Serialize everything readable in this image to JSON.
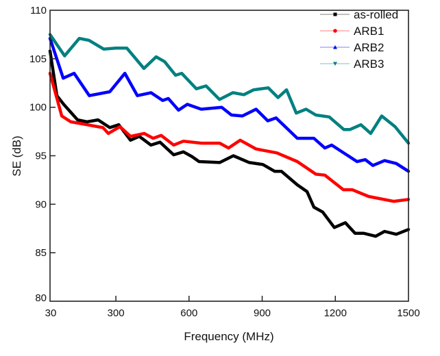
{
  "chart_data": {
    "type": "line",
    "title": "",
    "xlabel": "Frequency (MHz)",
    "ylabel": "SE (dB)",
    "xlim": [
      30,
      1500
    ],
    "ylim": [
      80,
      110
    ],
    "xticks": [
      "30",
      "300",
      "600",
      "900",
      "1200",
      "1500"
    ],
    "yticks": [
      "80",
      "85",
      "90",
      "95",
      "100",
      "105",
      "110"
    ],
    "grid": false,
    "legend_position": "top-right",
    "series": [
      {
        "name": "as-rolled",
        "color": "#000000",
        "marker": "square",
        "points": [
          [
            30,
            105.8
          ],
          [
            58,
            101.2
          ],
          [
            86,
            100.3
          ],
          [
            143,
            98.7
          ],
          [
            182,
            98.5
          ],
          [
            227,
            98.7
          ],
          [
            275,
            97.9
          ],
          [
            312,
            98.2
          ],
          [
            360,
            96.6
          ],
          [
            396,
            97.0
          ],
          [
            444,
            96.1
          ],
          [
            481,
            96.4
          ],
          [
            537,
            95.1
          ],
          [
            577,
            95.4
          ],
          [
            613,
            94.9
          ],
          [
            641,
            94.4
          ],
          [
            726,
            94.3
          ],
          [
            782,
            95.0
          ],
          [
            847,
            94.3
          ],
          [
            903,
            94.1
          ],
          [
            951,
            93.4
          ],
          [
            979,
            93.4
          ],
          [
            1044,
            92.0
          ],
          [
            1084,
            91.3
          ],
          [
            1112,
            89.7
          ],
          [
            1148,
            89.2
          ],
          [
            1196,
            87.6
          ],
          [
            1241,
            88.1
          ],
          [
            1281,
            87.0
          ],
          [
            1317,
            87.0
          ],
          [
            1365,
            86.7
          ],
          [
            1402,
            87.2
          ],
          [
            1450,
            86.9
          ],
          [
            1500,
            87.4
          ]
        ]
      },
      {
        "name": "ARB1",
        "color": "#ff0000",
        "marker": "circle",
        "points": [
          [
            30,
            103.5
          ],
          [
            78,
            99.1
          ],
          [
            115,
            98.5
          ],
          [
            182,
            98.2
          ],
          [
            247,
            97.9
          ],
          [
            269,
            97.3
          ],
          [
            317,
            98.0
          ],
          [
            360,
            97.0
          ],
          [
            416,
            97.3
          ],
          [
            453,
            96.8
          ],
          [
            486,
            97.1
          ],
          [
            537,
            96.1
          ],
          [
            577,
            96.5
          ],
          [
            650,
            96.3
          ],
          [
            726,
            96.3
          ],
          [
            762,
            95.8
          ],
          [
            810,
            96.6
          ],
          [
            875,
            95.7
          ],
          [
            960,
            95.3
          ],
          [
            1044,
            94.4
          ],
          [
            1120,
            93.1
          ],
          [
            1157,
            93.0
          ],
          [
            1233,
            91.5
          ],
          [
            1269,
            91.5
          ],
          [
            1337,
            90.8
          ],
          [
            1439,
            90.3
          ],
          [
            1500,
            90.5
          ]
        ]
      },
      {
        "name": "ARB2",
        "color": "#0000ff",
        "marker": "triangle-up",
        "points": [
          [
            30,
            107.1
          ],
          [
            84,
            103.0
          ],
          [
            129,
            103.5
          ],
          [
            191,
            101.2
          ],
          [
            275,
            101.6
          ],
          [
            337,
            103.5
          ],
          [
            388,
            101.2
          ],
          [
            444,
            101.5
          ],
          [
            492,
            100.7
          ],
          [
            515,
            100.9
          ],
          [
            557,
            99.7
          ],
          [
            593,
            100.3
          ],
          [
            650,
            99.8
          ],
          [
            734,
            100.0
          ],
          [
            774,
            99.2
          ],
          [
            819,
            99.1
          ],
          [
            875,
            99.8
          ],
          [
            923,
            98.6
          ],
          [
            957,
            98.9
          ],
          [
            1044,
            96.8
          ],
          [
            1112,
            96.8
          ],
          [
            1157,
            95.8
          ],
          [
            1185,
            96.1
          ],
          [
            1289,
            94.4
          ],
          [
            1323,
            94.6
          ],
          [
            1354,
            94.0
          ],
          [
            1402,
            94.5
          ],
          [
            1450,
            94.2
          ],
          [
            1500,
            93.4
          ]
        ]
      },
      {
        "name": "ARB3",
        "color": "#008080",
        "marker": "triangle-down",
        "points": [
          [
            30,
            107.5
          ],
          [
            90,
            105.3
          ],
          [
            150,
            107.1
          ],
          [
            190,
            106.9
          ],
          [
            250,
            106.0
          ],
          [
            300,
            106.1
          ],
          [
            345,
            106.1
          ],
          [
            415,
            104.0
          ],
          [
            465,
            105.2
          ],
          [
            500,
            104.7
          ],
          [
            545,
            103.3
          ],
          [
            570,
            103.5
          ],
          [
            630,
            101.9
          ],
          [
            670,
            102.2
          ],
          [
            725,
            100.8
          ],
          [
            780,
            101.5
          ],
          [
            825,
            101.3
          ],
          [
            865,
            101.8
          ],
          [
            925,
            102.0
          ],
          [
            965,
            101.0
          ],
          [
            1000,
            101.8
          ],
          [
            1040,
            99.4
          ],
          [
            1080,
            99.8
          ],
          [
            1120,
            99.2
          ],
          [
            1175,
            99.0
          ],
          [
            1235,
            97.7
          ],
          [
            1260,
            97.7
          ],
          [
            1305,
            98.2
          ],
          [
            1345,
            97.3
          ],
          [
            1390,
            99.1
          ],
          [
            1445,
            98.0
          ],
          [
            1500,
            96.3
          ]
        ]
      }
    ]
  }
}
